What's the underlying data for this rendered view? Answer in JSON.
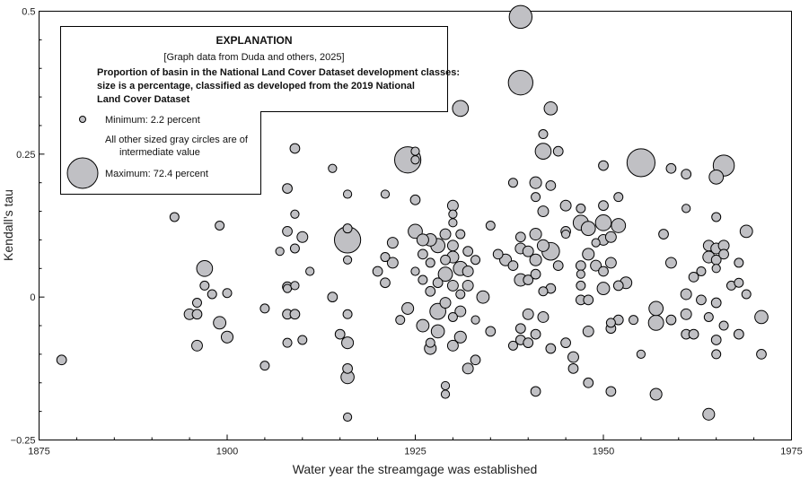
{
  "chart_data": {
    "type": "scatter",
    "xlabel": "Water year the streamgage was established",
    "ylabel": "Kendall’s tau",
    "xlim": [
      1875,
      1975
    ],
    "ylim": [
      -0.25,
      0.5
    ],
    "x_ticks": [
      1875,
      1900,
      1925,
      1950,
      1975
    ],
    "x_tick_labels": [
      "1875",
      "1900",
      "1925",
      "1950",
      "1975"
    ],
    "y_ticks": [
      -0.25,
      0,
      0.25,
      0.5
    ],
    "y_tick_labels": [
      "−0.25",
      "0",
      "0.25",
      "0.5"
    ],
    "grid": false,
    "marker_color": "#c0c0c4",
    "marker_edge": "#000000",
    "size_encoding": {
      "meaning": "Proportion of basin in the National Land Cover Dataset development classes, percent",
      "min": 2.2,
      "max": 72.4
    },
    "legend": {
      "title": "EXPLANATION",
      "source": "[Graph data from Duda and others, 2025]",
      "description_lines": [
        "Proportion of basin in the National Land Cover Dataset development classes:",
        "size is a percentage, classified as developed from the 2019 National",
        "Land Cover Dataset"
      ],
      "min_label": "Minimum: 2.2 percent",
      "mid_label_lines": [
        "All other sized gray circles are of",
        "intermediate value"
      ],
      "max_label": "Maximum: 72.4 percent",
      "placement": "top-left"
    },
    "points": [
      {
        "x": 1878,
        "y": -0.11,
        "s": 12
      },
      {
        "x": 1893,
        "y": 0.14,
        "s": 10
      },
      {
        "x": 1895,
        "y": -0.03,
        "s": 15
      },
      {
        "x": 1896,
        "y": -0.085,
        "s": 15
      },
      {
        "x": 1896,
        "y": -0.01,
        "s": 10
      },
      {
        "x": 1896,
        "y": -0.03,
        "s": 12
      },
      {
        "x": 1897,
        "y": 0.05,
        "s": 30
      },
      {
        "x": 1897,
        "y": 0.02,
        "s": 10
      },
      {
        "x": 1898,
        "y": 0.005,
        "s": 10
      },
      {
        "x": 1899,
        "y": 0.125,
        "s": 10
      },
      {
        "x": 1899,
        "y": -0.045,
        "s": 20
      },
      {
        "x": 1900,
        "y": -0.07,
        "s": 18
      },
      {
        "x": 1900,
        "y": 0.007,
        "s": 10
      },
      {
        "x": 1905,
        "y": -0.12,
        "s": 10
      },
      {
        "x": 1905,
        "y": -0.02,
        "s": 10
      },
      {
        "x": 1907,
        "y": 0.08,
        "s": 8
      },
      {
        "x": 1908,
        "y": 0.19,
        "s": 12
      },
      {
        "x": 1908,
        "y": 0.115,
        "s": 12
      },
      {
        "x": 1908,
        "y": 0.018,
        "s": 12
      },
      {
        "x": 1908,
        "y": 0.015,
        "s": 8
      },
      {
        "x": 1908,
        "y": -0.03,
        "s": 12
      },
      {
        "x": 1908,
        "y": -0.08,
        "s": 10
      },
      {
        "x": 1909,
        "y": 0.26,
        "s": 12
      },
      {
        "x": 1909,
        "y": 0.145,
        "s": 8
      },
      {
        "x": 1909,
        "y": 0.085,
        "s": 10
      },
      {
        "x": 1909,
        "y": 0.02,
        "s": 8
      },
      {
        "x": 1909,
        "y": -0.03,
        "s": 12
      },
      {
        "x": 1910,
        "y": 0.105,
        "s": 15
      },
      {
        "x": 1910,
        "y": -0.075,
        "s": 10
      },
      {
        "x": 1911,
        "y": 0.045,
        "s": 8
      },
      {
        "x": 1914,
        "y": 0.225,
        "s": 8
      },
      {
        "x": 1914,
        "y": 0.0,
        "s": 12
      },
      {
        "x": 1915,
        "y": -0.065,
        "s": 12
      },
      {
        "x": 1916,
        "y": 0.1,
        "s": 60
      },
      {
        "x": 1916,
        "y": 0.18,
        "s": 8
      },
      {
        "x": 1916,
        "y": 0.12,
        "s": 10
      },
      {
        "x": 1916,
        "y": 0.065,
        "s": 8
      },
      {
        "x": 1916,
        "y": -0.03,
        "s": 10
      },
      {
        "x": 1916,
        "y": -0.08,
        "s": 18
      },
      {
        "x": 1916,
        "y": -0.125,
        "s": 12
      },
      {
        "x": 1916,
        "y": -0.14,
        "s": 22
      },
      {
        "x": 1916,
        "y": -0.21,
        "s": 8
      },
      {
        "x": 1920,
        "y": 0.045,
        "s": 12
      },
      {
        "x": 1921,
        "y": 0.18,
        "s": 8
      },
      {
        "x": 1921,
        "y": 0.07,
        "s": 10
      },
      {
        "x": 1921,
        "y": 0.025,
        "s": 12
      },
      {
        "x": 1922,
        "y": 0.095,
        "s": 15
      },
      {
        "x": 1922,
        "y": 0.06,
        "s": 15
      },
      {
        "x": 1923,
        "y": -0.04,
        "s": 10
      },
      {
        "x": 1924,
        "y": 0.24,
        "s": 60
      },
      {
        "x": 1924,
        "y": -0.02,
        "s": 18
      },
      {
        "x": 1925,
        "y": 0.255,
        "s": 8
      },
      {
        "x": 1925,
        "y": 0.24,
        "s": 8
      },
      {
        "x": 1925,
        "y": 0.17,
        "s": 12
      },
      {
        "x": 1925,
        "y": 0.115,
        "s": 25
      },
      {
        "x": 1925,
        "y": 0.045,
        "s": 8
      },
      {
        "x": 1926,
        "y": 0.1,
        "s": 18
      },
      {
        "x": 1926,
        "y": 0.075,
        "s": 12
      },
      {
        "x": 1926,
        "y": 0.03,
        "s": 10
      },
      {
        "x": 1926,
        "y": -0.05,
        "s": 20
      },
      {
        "x": 1927,
        "y": 0.1,
        "s": 20
      },
      {
        "x": 1927,
        "y": 0.06,
        "s": 10
      },
      {
        "x": 1927,
        "y": 0.01,
        "s": 12
      },
      {
        "x": 1927,
        "y": -0.08,
        "s": 10
      },
      {
        "x": 1927,
        "y": -0.09,
        "s": 18
      },
      {
        "x": 1928,
        "y": 0.09,
        "s": 25
      },
      {
        "x": 1928,
        "y": 0.025,
        "s": 12
      },
      {
        "x": 1928,
        "y": -0.025,
        "s": 30
      },
      {
        "x": 1928,
        "y": -0.06,
        "s": 22
      },
      {
        "x": 1929,
        "y": 0.11,
        "s": 15
      },
      {
        "x": 1929,
        "y": 0.065,
        "s": 12
      },
      {
        "x": 1929,
        "y": 0.04,
        "s": 25
      },
      {
        "x": 1929,
        "y": -0.01,
        "s": 15
      },
      {
        "x": 1929,
        "y": -0.155,
        "s": 8
      },
      {
        "x": 1929,
        "y": -0.17,
        "s": 8
      },
      {
        "x": 1930,
        "y": 0.16,
        "s": 15
      },
      {
        "x": 1930,
        "y": 0.145,
        "s": 8
      },
      {
        "x": 1930,
        "y": 0.13,
        "s": 8
      },
      {
        "x": 1930,
        "y": 0.09,
        "s": 15
      },
      {
        "x": 1930,
        "y": 0.07,
        "s": 18
      },
      {
        "x": 1930,
        "y": 0.02,
        "s": 15
      },
      {
        "x": 1930,
        "y": -0.035,
        "s": 10
      },
      {
        "x": 1930,
        "y": -0.085,
        "s": 15
      },
      {
        "x": 1931,
        "y": 0.33,
        "s": 30
      },
      {
        "x": 1931,
        "y": 0.11,
        "s": 10
      },
      {
        "x": 1931,
        "y": 0.05,
        "s": 25
      },
      {
        "x": 1931,
        "y": 0.005,
        "s": 10
      },
      {
        "x": 1931,
        "y": -0.025,
        "s": 15
      },
      {
        "x": 1931,
        "y": -0.07,
        "s": 18
      },
      {
        "x": 1932,
        "y": 0.08,
        "s": 12
      },
      {
        "x": 1932,
        "y": 0.045,
        "s": 15
      },
      {
        "x": 1932,
        "y": 0.02,
        "s": 15
      },
      {
        "x": 1932,
        "y": -0.125,
        "s": 15
      },
      {
        "x": 1933,
        "y": 0.065,
        "s": 10
      },
      {
        "x": 1933,
        "y": -0.04,
        "s": 8
      },
      {
        "x": 1933,
        "y": -0.11,
        "s": 12
      },
      {
        "x": 1934,
        "y": 0.0,
        "s": 20
      },
      {
        "x": 1935,
        "y": 0.125,
        "s": 10
      },
      {
        "x": 1935,
        "y": -0.06,
        "s": 12
      },
      {
        "x": 1936,
        "y": 0.075,
        "s": 12
      },
      {
        "x": 1937,
        "y": 0.065,
        "s": 18
      },
      {
        "x": 1938,
        "y": 0.2,
        "s": 10
      },
      {
        "x": 1938,
        "y": 0.055,
        "s": 12
      },
      {
        "x": 1938,
        "y": -0.085,
        "s": 10
      },
      {
        "x": 1939,
        "y": 0.49,
        "s": 50
      },
      {
        "x": 1939,
        "y": 0.375,
        "s": 55
      },
      {
        "x": 1939,
        "y": 0.105,
        "s": 12
      },
      {
        "x": 1939,
        "y": 0.085,
        "s": 15
      },
      {
        "x": 1939,
        "y": 0.03,
        "s": 20
      },
      {
        "x": 1939,
        "y": -0.055,
        "s": 12
      },
      {
        "x": 1939,
        "y": -0.075,
        "s": 12
      },
      {
        "x": 1940,
        "y": 0.08,
        "s": 15
      },
      {
        "x": 1940,
        "y": 0.03,
        "s": 12
      },
      {
        "x": 1940,
        "y": -0.03,
        "s": 15
      },
      {
        "x": 1940,
        "y": -0.08,
        "s": 12
      },
      {
        "x": 1941,
        "y": 0.2,
        "s": 18
      },
      {
        "x": 1941,
        "y": 0.175,
        "s": 10
      },
      {
        "x": 1941,
        "y": 0.11,
        "s": 18
      },
      {
        "x": 1941,
        "y": 0.065,
        "s": 18
      },
      {
        "x": 1941,
        "y": 0.04,
        "s": 12
      },
      {
        "x": 1941,
        "y": -0.065,
        "s": 12
      },
      {
        "x": 1941,
        "y": -0.165,
        "s": 12
      },
      {
        "x": 1942,
        "y": 0.285,
        "s": 10
      },
      {
        "x": 1942,
        "y": 0.255,
        "s": 30
      },
      {
        "x": 1942,
        "y": 0.15,
        "s": 15
      },
      {
        "x": 1942,
        "y": 0.09,
        "s": 18
      },
      {
        "x": 1942,
        "y": 0.01,
        "s": 10
      },
      {
        "x": 1942,
        "y": -0.035,
        "s": 15
      },
      {
        "x": 1943,
        "y": 0.33,
        "s": 22
      },
      {
        "x": 1943,
        "y": 0.195,
        "s": 12
      },
      {
        "x": 1943,
        "y": 0.08,
        "s": 35
      },
      {
        "x": 1943,
        "y": 0.015,
        "s": 12
      },
      {
        "x": 1943,
        "y": -0.09,
        "s": 12
      },
      {
        "x": 1944,
        "y": 0.255,
        "s": 12
      },
      {
        "x": 1944,
        "y": 0.055,
        "s": 12
      },
      {
        "x": 1945,
        "y": 0.16,
        "s": 15
      },
      {
        "x": 1945,
        "y": 0.115,
        "s": 12
      },
      {
        "x": 1945,
        "y": 0.11,
        "s": 8
      },
      {
        "x": 1945,
        "y": -0.08,
        "s": 12
      },
      {
        "x": 1946,
        "y": -0.105,
        "s": 15
      },
      {
        "x": 1946,
        "y": -0.125,
        "s": 12
      },
      {
        "x": 1947,
        "y": 0.155,
        "s": 10
      },
      {
        "x": 1947,
        "y": 0.13,
        "s": 28
      },
      {
        "x": 1947,
        "y": 0.055,
        "s": 12
      },
      {
        "x": 1947,
        "y": 0.04,
        "s": 8
      },
      {
        "x": 1947,
        "y": 0.02,
        "s": 10
      },
      {
        "x": 1947,
        "y": -0.005,
        "s": 12
      },
      {
        "x": 1948,
        "y": 0.075,
        "s": 18
      },
      {
        "x": 1948,
        "y": 0.12,
        "s": 25
      },
      {
        "x": 1948,
        "y": -0.005,
        "s": 12
      },
      {
        "x": 1948,
        "y": -0.06,
        "s": 15
      },
      {
        "x": 1948,
        "y": -0.15,
        "s": 12
      },
      {
        "x": 1949,
        "y": 0.095,
        "s": 8
      },
      {
        "x": 1949,
        "y": 0.055,
        "s": 15
      },
      {
        "x": 1950,
        "y": 0.23,
        "s": 12
      },
      {
        "x": 1950,
        "y": 0.16,
        "s": 12
      },
      {
        "x": 1950,
        "y": 0.13,
        "s": 30
      },
      {
        "x": 1950,
        "y": 0.1,
        "s": 15
      },
      {
        "x": 1950,
        "y": 0.045,
        "s": 12
      },
      {
        "x": 1950,
        "y": 0.015,
        "s": 20
      },
      {
        "x": 1951,
        "y": 0.105,
        "s": 15
      },
      {
        "x": 1951,
        "y": 0.06,
        "s": 15
      },
      {
        "x": 1951,
        "y": -0.045,
        "s": 10
      },
      {
        "x": 1951,
        "y": -0.055,
        "s": 12
      },
      {
        "x": 1951,
        "y": -0.165,
        "s": 12
      },
      {
        "x": 1952,
        "y": 0.175,
        "s": 10
      },
      {
        "x": 1952,
        "y": 0.125,
        "s": 25
      },
      {
        "x": 1952,
        "y": 0.02,
        "s": 12
      },
      {
        "x": 1952,
        "y": -0.04,
        "s": 12
      },
      {
        "x": 1953,
        "y": 0.025,
        "s": 18
      },
      {
        "x": 1954,
        "y": -0.04,
        "s": 10
      },
      {
        "x": 1955,
        "y": 0.235,
        "s": 65
      },
      {
        "x": 1955,
        "y": -0.1,
        "s": 8
      },
      {
        "x": 1957,
        "y": -0.02,
        "s": 25
      },
      {
        "x": 1957,
        "y": -0.045,
        "s": 28
      },
      {
        "x": 1957,
        "y": -0.17,
        "s": 18
      },
      {
        "x": 1958,
        "y": 0.11,
        "s": 12
      },
      {
        "x": 1959,
        "y": 0.225,
        "s": 12
      },
      {
        "x": 1959,
        "y": 0.06,
        "s": 15
      },
      {
        "x": 1959,
        "y": -0.04,
        "s": 12
      },
      {
        "x": 1961,
        "y": 0.215,
        "s": 12
      },
      {
        "x": 1961,
        "y": 0.155,
        "s": 8
      },
      {
        "x": 1961,
        "y": 0.005,
        "s": 15
      },
      {
        "x": 1961,
        "y": -0.03,
        "s": 15
      },
      {
        "x": 1961,
        "y": -0.065,
        "s": 12
      },
      {
        "x": 1962,
        "y": 0.035,
        "s": 12
      },
      {
        "x": 1962,
        "y": -0.065,
        "s": 12
      },
      {
        "x": 1963,
        "y": 0.045,
        "s": 10
      },
      {
        "x": 1963,
        "y": -0.005,
        "s": 12
      },
      {
        "x": 1964,
        "y": 0.09,
        "s": 15
      },
      {
        "x": 1964,
        "y": 0.07,
        "s": 18
      },
      {
        "x": 1964,
        "y": -0.035,
        "s": 10
      },
      {
        "x": 1964,
        "y": -0.205,
        "s": 18
      },
      {
        "x": 1965,
        "y": 0.21,
        "s": 25
      },
      {
        "x": 1965,
        "y": 0.14,
        "s": 10
      },
      {
        "x": 1965,
        "y": 0.085,
        "s": 15
      },
      {
        "x": 1965,
        "y": 0.05,
        "s": 8
      },
      {
        "x": 1965,
        "y": 0.065,
        "s": 12
      },
      {
        "x": 1965,
        "y": -0.01,
        "s": 12
      },
      {
        "x": 1965,
        "y": -0.075,
        "s": 12
      },
      {
        "x": 1965,
        "y": -0.1,
        "s": 10
      },
      {
        "x": 1966,
        "y": 0.23,
        "s": 45
      },
      {
        "x": 1966,
        "y": 0.09,
        "s": 15
      },
      {
        "x": 1966,
        "y": 0.075,
        "s": 12
      },
      {
        "x": 1966,
        "y": -0.05,
        "s": 10
      },
      {
        "x": 1967,
        "y": 0.02,
        "s": 10
      },
      {
        "x": 1968,
        "y": 0.06,
        "s": 10
      },
      {
        "x": 1968,
        "y": 0.025,
        "s": 10
      },
      {
        "x": 1968,
        "y": -0.065,
        "s": 12
      },
      {
        "x": 1969,
        "y": 0.115,
        "s": 20
      },
      {
        "x": 1969,
        "y": 0.005,
        "s": 10
      },
      {
        "x": 1971,
        "y": -0.035,
        "s": 22
      },
      {
        "x": 1971,
        "y": -0.1,
        "s": 12
      }
    ]
  }
}
